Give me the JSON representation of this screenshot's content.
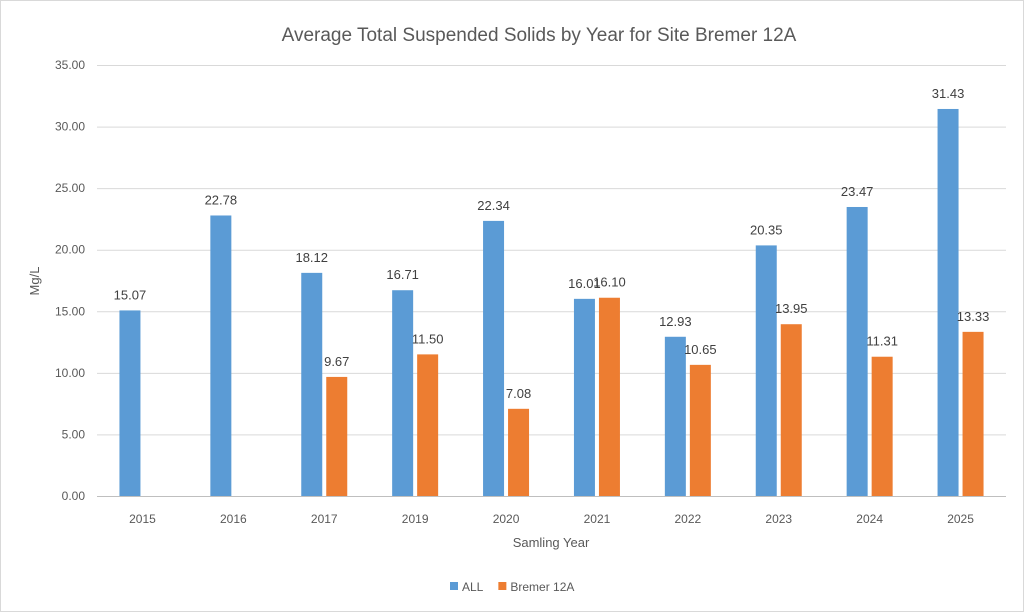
{
  "chart_data": {
    "type": "bar",
    "title": "Average Total Suspended Solids by Year for Site Bremer 12A",
    "xlabel": "Samling Year",
    "ylabel": "Mg/L",
    "ylim": [
      0,
      35
    ],
    "yticks": [
      "0.00",
      "5.00",
      "10.00",
      "15.00",
      "20.00",
      "25.00",
      "30.00",
      "35.00"
    ],
    "ytick_values": [
      0,
      5,
      10,
      15,
      20,
      25,
      30,
      35
    ],
    "grid": true,
    "legend_position": "bottom",
    "categories": [
      "2015",
      "2016",
      "2017",
      "2019",
      "2020",
      "2021",
      "2022",
      "2023",
      "2024",
      "2025"
    ],
    "series": [
      {
        "name": "ALL",
        "color": "#5b9bd5",
        "values": [
          15.07,
          22.78,
          18.12,
          16.71,
          22.34,
          16.01,
          12.93,
          20.35,
          23.47,
          31.43
        ],
        "labels": [
          "15.07",
          "22.78",
          "18.12",
          "16.71",
          "22.34",
          "16.01",
          "12.93",
          "20.35",
          "23.47",
          "31.43"
        ]
      },
      {
        "name": "Bremer 12A",
        "color": "#ed7d31",
        "values": [
          null,
          null,
          9.67,
          11.5,
          7.08,
          16.1,
          10.65,
          13.95,
          11.31,
          13.33
        ],
        "labels": [
          null,
          null,
          "9.67",
          "11.50",
          "7.08",
          "16.10",
          "10.65",
          "13.95",
          "11.31",
          "13.33"
        ]
      }
    ]
  }
}
